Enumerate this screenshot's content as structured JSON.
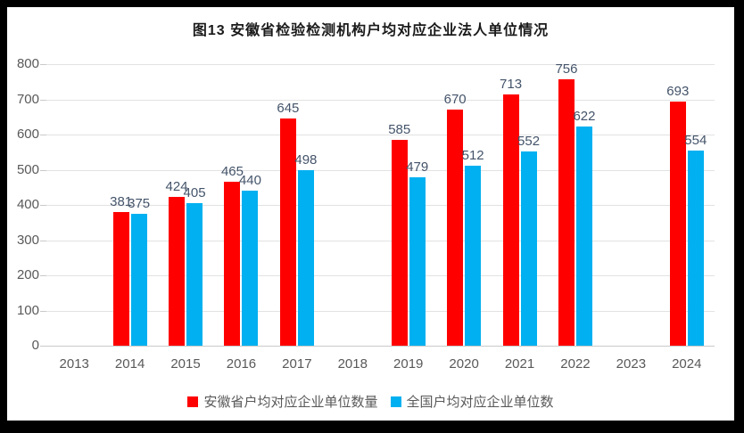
{
  "title": "图13 安徽省检验检测机构户均对应企业法人单位情况",
  "colors": {
    "anhui_series": "#FF0000",
    "national_series": "#00B0F0",
    "gridline": "#E2E2E2",
    "axis_line": "#C9C9C9",
    "axis_label": "#595959",
    "data_label": "#44546A",
    "frame_border": "#000000",
    "background": "#FFFFFF"
  },
  "chart_data": {
    "type": "bar",
    "title": "图13 安徽省检验检测机构户均对应企业法人单位情况",
    "categories": [
      "2013",
      "2014",
      "2015",
      "2016",
      "2017",
      "2018",
      "2019",
      "2020",
      "2021",
      "2022",
      "2023",
      "2024"
    ],
    "series": [
      {
        "name": "安徽省户均对应企业单位数量",
        "color": "#FF0000",
        "values": [
          null,
          381,
          424,
          465,
          645,
          null,
          585,
          670,
          713,
          756,
          null,
          693
        ]
      },
      {
        "name": "全国户均对应企业单位数",
        "color": "#00B0F0",
        "values": [
          null,
          375,
          405,
          440,
          498,
          null,
          479,
          512,
          552,
          622,
          null,
          554
        ]
      }
    ],
    "xlabel": "",
    "ylabel": "",
    "ylim": [
      0,
      800
    ],
    "yticks": [
      0,
      100,
      200,
      300,
      400,
      500,
      600,
      700,
      800
    ],
    "grid": true,
    "data_labels": true,
    "legend_position": "bottom"
  }
}
